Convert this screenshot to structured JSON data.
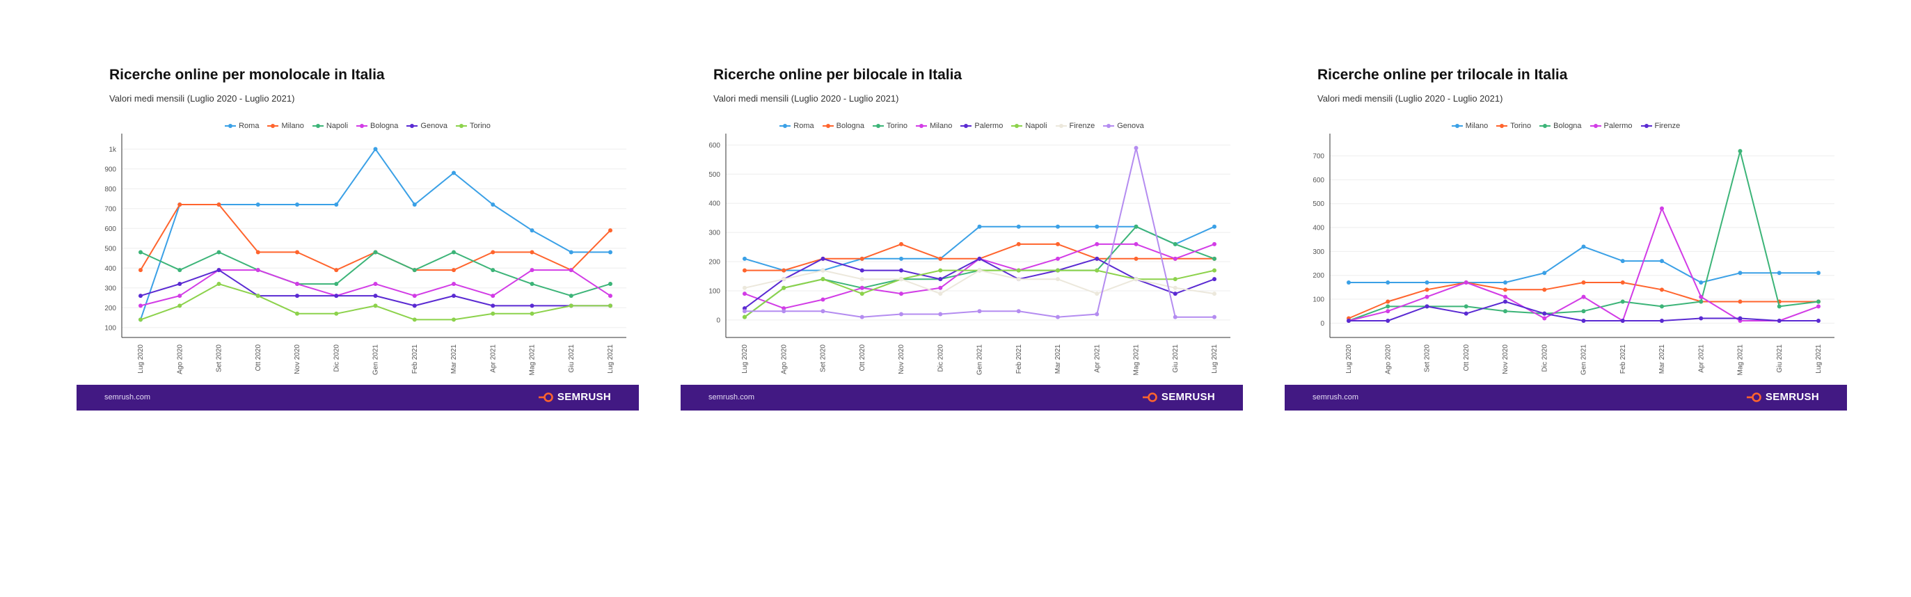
{
  "charts": [
    {
      "title": "Ricerche online per monolocale in Italia",
      "subtitle": "Valori medi mensili (Luglio 2020 - Luglio 2021)",
      "footer_site": "semrush.com",
      "footer_brand": "SEMRUSH"
    },
    {
      "title": "Ricerche online per bilocale in Italia",
      "subtitle": "Valori medi mensili (Luglio 2020 - Luglio 2021)",
      "footer_site": "semrush.com",
      "footer_brand": "SEMRUSH"
    },
    {
      "title": "Ricerche online per trilocale in Italia",
      "subtitle": "Valori medi mensili (Luglio 2020 - Luglio 2021)",
      "footer_site": "semrush.com",
      "footer_brand": "SEMRUSH"
    }
  ],
  "colors": {
    "footer_bg": "#421983",
    "brand_accent": "#ff642d"
  },
  "icons": [
    "semrush-logo-icon"
  ],
  "chart_data": [
    {
      "type": "line",
      "title": "Ricerche online per monolocale in Italia",
      "subtitle": "Valori medi mensili (Luglio 2020 - Luglio 2021)",
      "categories": [
        "Lug 2020",
        "Ago 2020",
        "Set 2020",
        "Ott 2020",
        "Nov 2020",
        "Dic 2020",
        "Gen 2021",
        "Feb 2021",
        "Mar 2021",
        "Apr 2021",
        "Mag 2021",
        "Giu 2021",
        "Lug 2021"
      ],
      "ylim": [
        50,
        1050
      ],
      "yticks": [
        100,
        200,
        300,
        400,
        500,
        600,
        700,
        800,
        900,
        1000
      ],
      "ytick_labels": [
        "100",
        "200",
        "300",
        "400",
        "500",
        "600",
        "700",
        "800",
        "900",
        "1k"
      ],
      "grid": true,
      "legend": "top-center",
      "series": [
        {
          "name": "Roma",
          "color": "#3aa0e6",
          "values": [
            140,
            720,
            720,
            720,
            720,
            720,
            1000,
            720,
            880,
            720,
            590,
            480,
            480
          ]
        },
        {
          "name": "Milano",
          "color": "#ff642d",
          "values": [
            390,
            720,
            720,
            480,
            480,
            390,
            480,
            390,
            390,
            480,
            480,
            390,
            590
          ]
        },
        {
          "name": "Napoli",
          "color": "#3cb478",
          "values": [
            480,
            390,
            480,
            390,
            320,
            320,
            480,
            390,
            480,
            390,
            320,
            260,
            320
          ]
        },
        {
          "name": "Bologna",
          "color": "#d23ce6",
          "values": [
            210,
            260,
            390,
            390,
            320,
            260,
            320,
            260,
            320,
            260,
            390,
            390,
            260
          ]
        },
        {
          "name": "Genova",
          "color": "#5a2ad2",
          "values": [
            260,
            320,
            390,
            260,
            260,
            260,
            260,
            210,
            260,
            210,
            210,
            210,
            210
          ]
        },
        {
          "name": "Torino",
          "color": "#8cd24b",
          "values": [
            140,
            210,
            320,
            260,
            170,
            170,
            210,
            140,
            140,
            170,
            170,
            210,
            210
          ]
        }
      ]
    },
    {
      "type": "line",
      "title": "Ricerche online per bilocale in Italia",
      "subtitle": "Valori medi mensili (Luglio 2020 - Luglio 2021)",
      "categories": [
        "Lug 2020",
        "Ago 2020",
        "Set 2020",
        "Ott 2020",
        "Nov 2020",
        "Dic 2020",
        "Gen 2021",
        "Feb 2021",
        "Mar 2021",
        "Apr 2021",
        "Mag 2021",
        "Giu 2021",
        "Lug 2021"
      ],
      "ylim": [
        -60,
        620
      ],
      "yticks": [
        0,
        100,
        200,
        300,
        400,
        500,
        600
      ],
      "ytick_labels": [
        "0",
        "100",
        "200",
        "300",
        "400",
        "500",
        "600"
      ],
      "grid": true,
      "legend": "top-center",
      "series": [
        {
          "name": "Roma",
          "color": "#3aa0e6",
          "values": [
            210,
            170,
            170,
            210,
            210,
            210,
            320,
            320,
            320,
            320,
            320,
            260,
            320
          ]
        },
        {
          "name": "Bologna",
          "color": "#ff642d",
          "values": [
            170,
            170,
            210,
            210,
            260,
            210,
            210,
            260,
            260,
            210,
            210,
            210,
            210
          ]
        },
        {
          "name": "Torino",
          "color": "#3cb478",
          "values": [
            10,
            110,
            140,
            110,
            140,
            140,
            170,
            170,
            170,
            170,
            320,
            260,
            210
          ]
        },
        {
          "name": "Milano",
          "color": "#d23ce6",
          "values": [
            90,
            40,
            70,
            110,
            90,
            110,
            210,
            170,
            210,
            260,
            260,
            210,
            260
          ]
        },
        {
          "name": "Palermo",
          "color": "#5a2ad2",
          "values": [
            40,
            140,
            210,
            170,
            170,
            140,
            210,
            140,
            170,
            210,
            140,
            90,
            140
          ]
        },
        {
          "name": "Napoli",
          "color": "#8cd24b",
          "values": [
            10,
            110,
            140,
            90,
            140,
            170,
            170,
            170,
            170,
            170,
            140,
            140,
            170
          ]
        },
        {
          "name": "Firenze",
          "color": "#ece8dc",
          "values": [
            110,
            140,
            170,
            140,
            140,
            90,
            170,
            140,
            140,
            90,
            140,
            110,
            90
          ]
        },
        {
          "name": "Genova",
          "color": "#b48cf0",
          "values": [
            30,
            30,
            30,
            10,
            20,
            20,
            30,
            30,
            10,
            20,
            590,
            10,
            10
          ]
        }
      ]
    },
    {
      "type": "line",
      "title": "Ricerche online per trilocale in Italia",
      "subtitle": "Valori medi mensili (Luglio 2020 - Luglio 2021)",
      "categories": [
        "Lug 2020",
        "Ago 2020",
        "Set 2020",
        "Ott 2020",
        "Nov 2020",
        "Dic 2020",
        "Gen 2021",
        "Feb 2021",
        "Mar 2021",
        "Apr 2021",
        "Mag 2021",
        "Giu 2021",
        "Lug 2021"
      ],
      "ylim": [
        -60,
        770
      ],
      "yticks": [
        0,
        100,
        200,
        300,
        400,
        500,
        600,
        700
      ],
      "ytick_labels": [
        "0",
        "100",
        "200",
        "300",
        "400",
        "500",
        "600",
        "700"
      ],
      "grid": true,
      "legend": "top-center",
      "series": [
        {
          "name": "Milano",
          "color": "#3aa0e6",
          "values": [
            170,
            170,
            170,
            170,
            170,
            210,
            320,
            260,
            260,
            170,
            210,
            210,
            210
          ]
        },
        {
          "name": "Torino",
          "color": "#ff642d",
          "values": [
            20,
            90,
            140,
            170,
            140,
            140,
            170,
            170,
            140,
            90,
            90,
            90,
            90
          ]
        },
        {
          "name": "Bologna",
          "color": "#3cb478",
          "values": [
            10,
            70,
            70,
            70,
            50,
            40,
            50,
            90,
            70,
            90,
            720,
            70,
            90
          ]
        },
        {
          "name": "Palermo",
          "color": "#d23ce6",
          "values": [
            10,
            50,
            110,
            170,
            110,
            20,
            110,
            10,
            480,
            110,
            10,
            10,
            70
          ]
        },
        {
          "name": "Firenze",
          "color": "#5a2ad2",
          "values": [
            10,
            10,
            70,
            40,
            90,
            40,
            10,
            10,
            10,
            20,
            20,
            10,
            10
          ]
        }
      ]
    }
  ]
}
